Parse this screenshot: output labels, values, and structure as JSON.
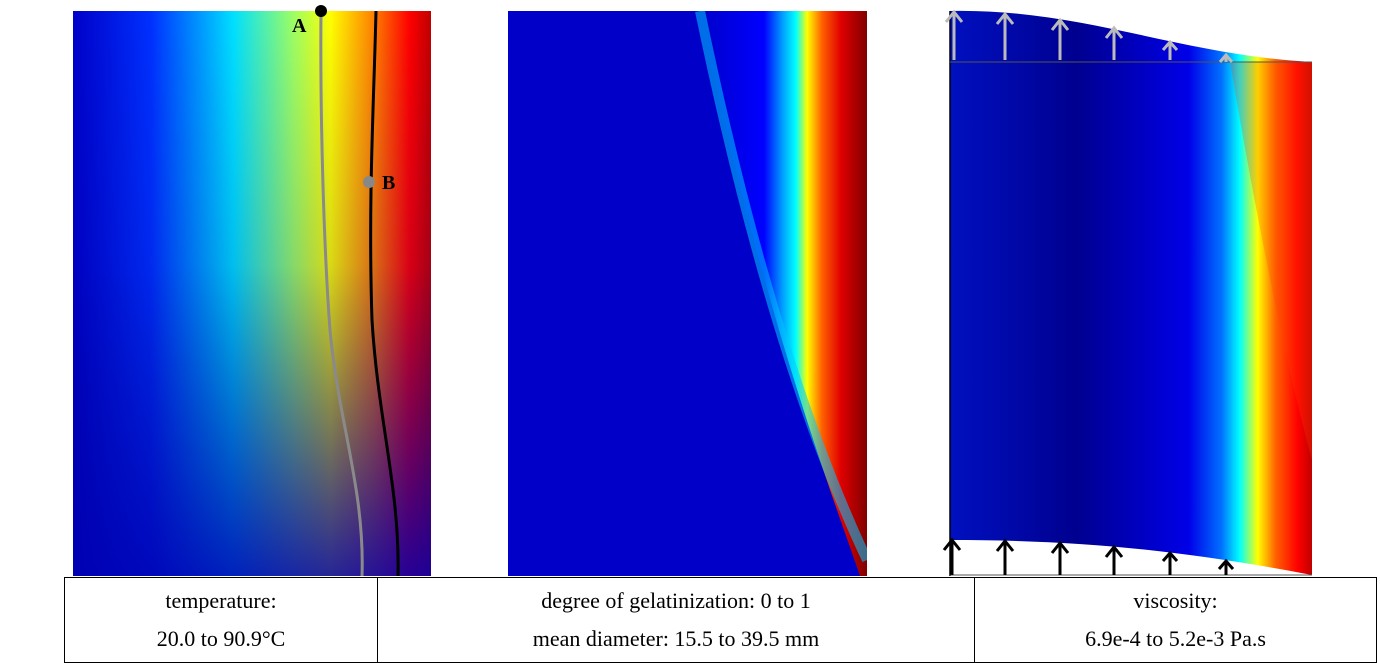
{
  "panels": [
    {
      "name": "temperature",
      "points": [
        {
          "label": "A",
          "color": "#000000"
        },
        {
          "label": "B",
          "color": "#888888"
        }
      ],
      "colormap": [
        "#00008f",
        "#0000ff",
        "#00ffff",
        "#ffff00",
        "#ff0000",
        "#800000"
      ]
    },
    {
      "name": "gelatinization",
      "colormap": [
        "#00008f",
        "#0000ff",
        "#00ffff",
        "#ffff00",
        "#ff0000",
        "#800000"
      ]
    },
    {
      "name": "viscosity",
      "arrows": {
        "top_color": "#bbbbbb",
        "bottom_color": "#000000"
      },
      "colormap": [
        "#00008f",
        "#0000ff",
        "#00ffff",
        "#ffff00",
        "#ff0000",
        "#800000"
      ]
    }
  ],
  "captions": [
    {
      "line1": "temperature:",
      "line2": "20.0 to 90.9°C"
    },
    {
      "line1": "degree of gelatinization: 0 to 1",
      "line2": "mean diameter: 15.5 to 39.5 mm"
    },
    {
      "line1": "viscosity:",
      "line2": "6.9e-4 to 5.2e-3 Pa.s"
    }
  ]
}
